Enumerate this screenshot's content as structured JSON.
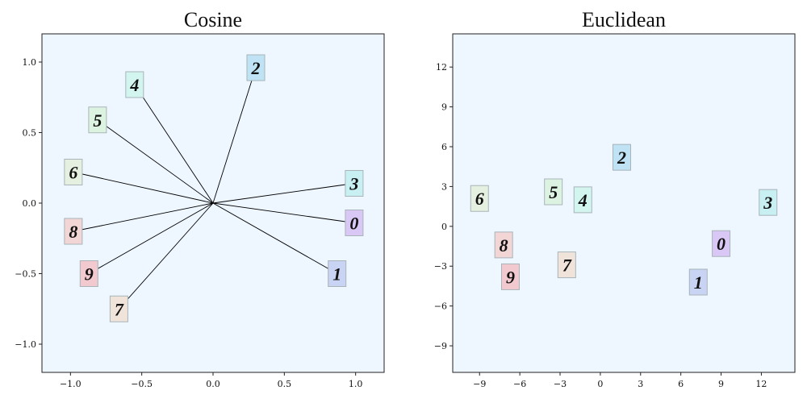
{
  "chart_data": [
    {
      "type": "scatter",
      "title": "Cosine",
      "xlabel": "",
      "ylabel": "",
      "xlim": [
        -1.2,
        1.2
      ],
      "ylim": [
        -1.2,
        1.2
      ],
      "xticks": [
        -1.0,
        -0.5,
        0.0,
        0.5,
        1.0
      ],
      "xtick_labels": [
        "−1.0",
        "−0.5",
        "0.0",
        "0.5",
        "1.0"
      ],
      "yticks": [
        -1.0,
        -0.5,
        0.0,
        0.5,
        1.0
      ],
      "ytick_labels": [
        "−1.0",
        "−0.5",
        "0.0",
        "0.5",
        "1.0"
      ],
      "rays_from_origin": true,
      "grid": false,
      "background": "#eef6ff",
      "points": [
        {
          "label": "0",
          "x": 0.99,
          "y": -0.14,
          "color": "#d9c8f5"
        },
        {
          "label": "1",
          "x": 0.87,
          "y": -0.5,
          "color": "#c9d3f3"
        },
        {
          "label": "2",
          "x": 0.3,
          "y": 0.96,
          "color": "#bfe3f5"
        },
        {
          "label": "3",
          "x": 0.99,
          "y": 0.14,
          "color": "#c8f0f3"
        },
        {
          "label": "4",
          "x": -0.55,
          "y": 0.84,
          "color": "#d2f5ef"
        },
        {
          "label": "5",
          "x": -0.81,
          "y": 0.59,
          "color": "#ddf3e2"
        },
        {
          "label": "6",
          "x": -0.98,
          "y": 0.22,
          "color": "#e6f0e0"
        },
        {
          "label": "7",
          "x": -0.66,
          "y": -0.75,
          "color": "#f0e4da"
        },
        {
          "label": "8",
          "x": -0.98,
          "y": -0.2,
          "color": "#f2d6d6"
        },
        {
          "label": "9",
          "x": -0.87,
          "y": -0.5,
          "color": "#f3c9d0"
        }
      ]
    },
    {
      "type": "scatter",
      "title": "Euclidean",
      "xlabel": "",
      "ylabel": "",
      "xlim": [
        -11,
        14.5
      ],
      "ylim": [
        -11,
        14.5
      ],
      "xticks": [
        -9,
        -6,
        -3,
        0,
        3,
        6,
        9,
        12
      ],
      "xtick_labels": [
        "−9",
        "−6",
        "−3",
        "0",
        "3",
        "6",
        "9",
        "12"
      ],
      "yticks": [
        -9,
        -6,
        -3,
        0,
        3,
        6,
        9,
        12
      ],
      "ytick_labels": [
        "−9",
        "−6",
        "−3",
        "0",
        "3",
        "6",
        "9",
        "12"
      ],
      "rays_from_origin": false,
      "grid": false,
      "background": "#eef6ff",
      "points": [
        {
          "label": "0",
          "x": 9.0,
          "y": -1.3,
          "color": "#d9c8f5"
        },
        {
          "label": "1",
          "x": 7.3,
          "y": -4.2,
          "color": "#c9d3f3"
        },
        {
          "label": "2",
          "x": 1.6,
          "y": 5.2,
          "color": "#bfe3f5"
        },
        {
          "label": "3",
          "x": 12.5,
          "y": 1.8,
          "color": "#c8f0f3"
        },
        {
          "label": "4",
          "x": -1.3,
          "y": 2.0,
          "color": "#d2f5ef"
        },
        {
          "label": "5",
          "x": -3.5,
          "y": 2.6,
          "color": "#ddf3e2"
        },
        {
          "label": "6",
          "x": -9.0,
          "y": 2.1,
          "color": "#e6f0e0"
        },
        {
          "label": "7",
          "x": -2.5,
          "y": -2.9,
          "color": "#f0e4da"
        },
        {
          "label": "8",
          "x": -7.2,
          "y": -1.4,
          "color": "#f2d6d6"
        },
        {
          "label": "9",
          "x": -6.7,
          "y": -3.8,
          "color": "#f3c9d0"
        }
      ]
    }
  ]
}
